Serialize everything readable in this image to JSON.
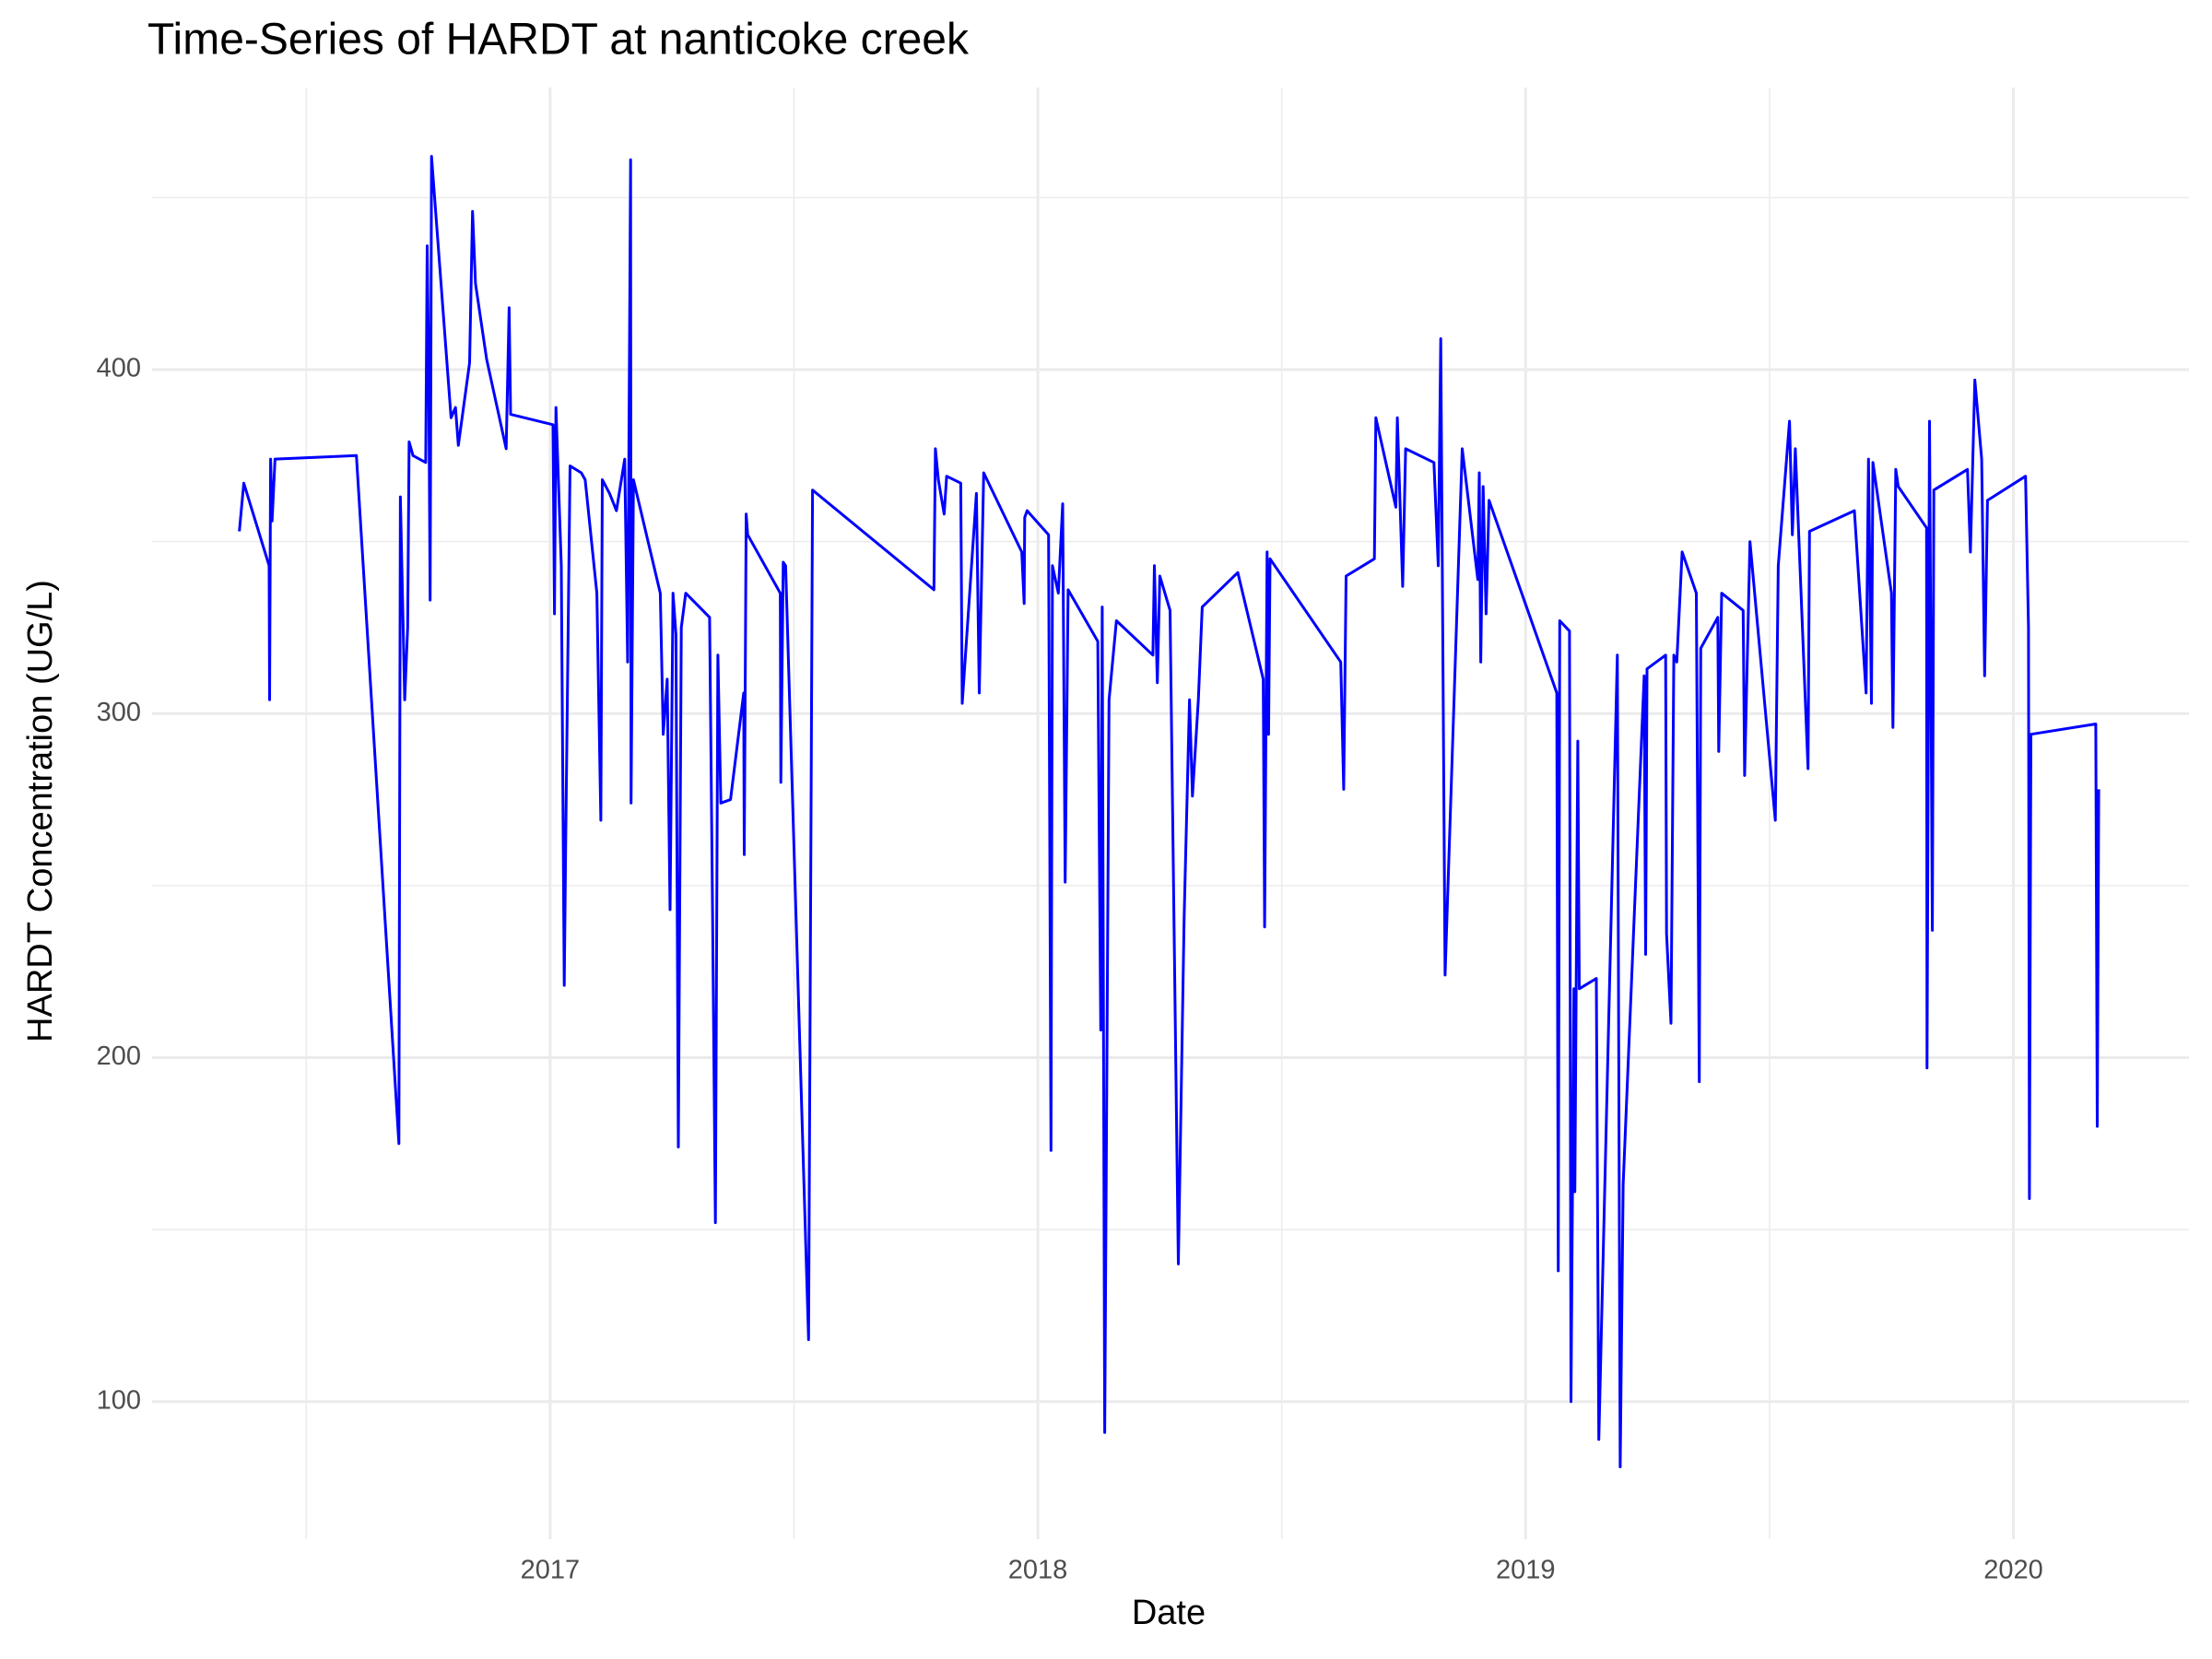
{
  "chart_data": {
    "type": "line",
    "title": "Time-Series of HARDT at nanticoke creek",
    "x_label": "Date",
    "y_label": "HARDT Concentration (UG/L)",
    "color": "#0000ff",
    "grid": true,
    "xlim": [
      2016.184,
      2020.36
    ],
    "xticks": [
      2017,
      2018,
      2019,
      2020
    ],
    "ylim": [
      60,
      482
    ],
    "yticks": [
      100,
      200,
      300,
      400
    ],
    "x": [
      2016.363,
      2016.372,
      2016.424,
      2016.425,
      2016.427,
      2016.43,
      2016.436,
      2016.603,
      2016.69,
      2016.693,
      2016.702,
      2016.708,
      2016.711,
      2016.719,
      2016.745,
      2016.748,
      2016.751,
      2016.754,
      2016.757,
      2016.797,
      2016.806,
      2016.812,
      2016.835,
      2016.841,
      2016.847,
      2016.87,
      2016.91,
      2016.916,
      2016.919,
      2017.006,
      2017.009,
      2017.012,
      2017.023,
      2017.029,
      2017.032,
      2017.041,
      2017.064,
      2017.072,
      2017.096,
      2017.104,
      2017.107,
      2017.122,
      2017.136,
      2017.153,
      2017.159,
      2017.165,
      2017.166,
      2017.171,
      2017.226,
      2017.232,
      2017.24,
      2017.246,
      2017.252,
      2017.258,
      2017.263,
      2017.269,
      2017.278,
      2017.327,
      2017.333,
      2017.339,
      2017.344,
      2017.35,
      2017.37,
      2017.397,
      2017.398,
      2017.402,
      2017.405,
      2017.472,
      2017.473,
      2017.478,
      2017.483,
      2017.53,
      2017.538,
      2017.787,
      2017.79,
      2017.796,
      2017.808,
      2017.813,
      2017.842,
      2017.845,
      2017.874,
      2017.88,
      2017.889,
      2017.967,
      2017.972,
      2017.973,
      2017.978,
      2018.022,
      2018.027,
      2018.03,
      2018.042,
      2018.051,
      2018.056,
      2018.062,
      2018.123,
      2018.129,
      2018.132,
      2018.137,
      2018.146,
      2018.161,
      2018.236,
      2018.239,
      2018.245,
      2018.25,
      2018.271,
      2018.288,
      2018.3,
      2018.311,
      2018.317,
      2018.329,
      2018.337,
      2018.41,
      2018.462,
      2018.465,
      2018.47,
      2018.473,
      2018.476,
      2018.621,
      2018.627,
      2018.632,
      2018.69,
      2018.693,
      2018.734,
      2018.737,
      2018.748,
      2018.754,
      2018.812,
      2018.821,
      2018.826,
      2018.835,
      2018.87,
      2018.902,
      2018.905,
      2018.908,
      2018.913,
      2018.919,
      2018.925,
      2019.064,
      2019.067,
      2019.07,
      2019.09,
      2019.093,
      2019.099,
      2019.101,
      2019.107,
      2019.11,
      2019.145,
      2019.15,
      2019.188,
      2019.194,
      2019.2,
      2019.243,
      2019.246,
      2019.249,
      2019.287,
      2019.289,
      2019.298,
      2019.304,
      2019.31,
      2019.321,
      2019.35,
      2019.356,
      2019.359,
      2019.394,
      2019.396,
      2019.402,
      2019.446,
      2019.449,
      2019.46,
      2019.512,
      2019.518,
      2019.541,
      2019.547,
      2019.553,
      2019.579,
      2019.582,
      2019.674,
      2019.698,
      2019.703,
      2019.709,
      2019.712,
      2019.75,
      2019.753,
      2019.759,
      2019.764,
      2019.822,
      2019.823,
      2019.828,
      2019.834,
      2019.837,
      2019.906,
      2019.912,
      2019.921,
      2019.935,
      2019.941,
      2019.947,
      2020.025,
      2020.031,
      2020.033,
      2020.036,
      2020.169,
      2020.172,
      2020.175
    ],
    "values": [
      353,
      367,
      343,
      304,
      374,
      356,
      374,
      375,
      175,
      363,
      304,
      325,
      379,
      375,
      373,
      436,
      401,
      333,
      462,
      386,
      389,
      378,
      402,
      446,
      425,
      403,
      377,
      418,
      387,
      384,
      329,
      389,
      343,
      221,
      263,
      372,
      370,
      368,
      335,
      269,
      368,
      364,
      359,
      374,
      315,
      461,
      274,
      368,
      335,
      294,
      310,
      243,
      335,
      323,
      174,
      325,
      335,
      328,
      243,
      152,
      317,
      274,
      275,
      306,
      259,
      358,
      352,
      335,
      280,
      344,
      343,
      118,
      365,
      336,
      377,
      368,
      358,
      369,
      367,
      303,
      364,
      306,
      370,
      347,
      332,
      357,
      359,
      352,
      173,
      343,
      335,
      361,
      251,
      336,
      321,
      208,
      331,
      91,
      304,
      327,
      317,
      343,
      309,
      340,
      330,
      140,
      241,
      304,
      276,
      304,
      331,
      341,
      310,
      238,
      347,
      294,
      345,
      315,
      278,
      340,
      345,
      386,
      360,
      386,
      337,
      377,
      373,
      343,
      409,
      224,
      377,
      339,
      370,
      315,
      366,
      329,
      362,
      306,
      138,
      327,
      324,
      100,
      220,
      161,
      292,
      220,
      223,
      89,
      317,
      81,
      163,
      311,
      230,
      313,
      317,
      236,
      210,
      317,
      315,
      347,
      335,
      193,
      319,
      328,
      289,
      335,
      330,
      282,
      350,
      269,
      343,
      385,
      352,
      377,
      284,
      353,
      359,
      306,
      374,
      303,
      373,
      335,
      296,
      371,
      366,
      354,
      197,
      385,
      237,
      365,
      371,
      347,
      397,
      374,
      311,
      362,
      369,
      325,
      159,
      294,
      297,
      180,
      278
    ]
  }
}
